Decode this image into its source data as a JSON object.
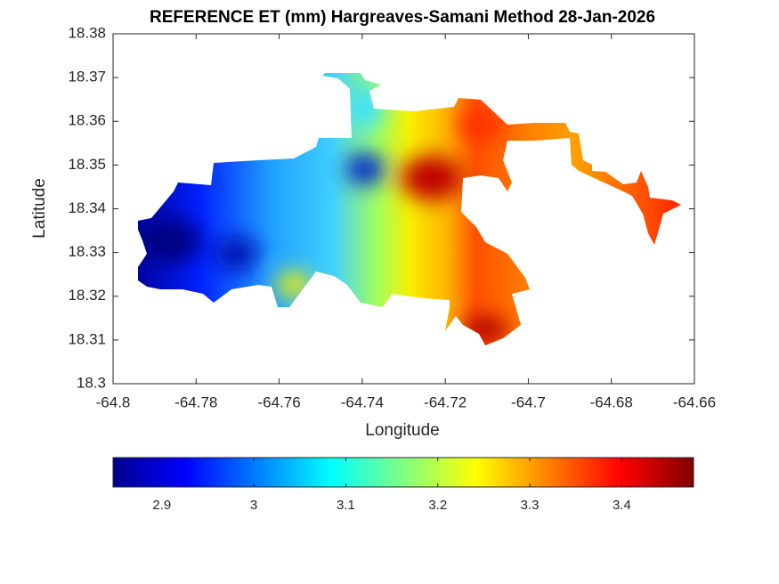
{
  "chart_data": {
    "type": "contour-map",
    "title": "REFERENCE ET (mm) Hargreaves-Samani Method  28-Jan-2026",
    "x_label": "Longitude",
    "y_label": "Latitude",
    "xlim": [
      -64.8,
      -64.66
    ],
    "xticks": [
      -64.8,
      -64.78,
      -64.76,
      -64.74,
      -64.72,
      -64.7,
      -64.68,
      -64.66
    ],
    "ylim": [
      18.3,
      18.38
    ],
    "yticks": [
      18.3,
      18.31,
      18.32,
      18.33,
      18.34,
      18.35,
      18.36,
      18.37,
      18.38
    ],
    "colormap": "jet",
    "clim": [
      2.847,
      3.478
    ],
    "cticks": [
      2.9,
      3,
      3.1,
      3.2,
      3.3,
      3.4
    ]
  }
}
